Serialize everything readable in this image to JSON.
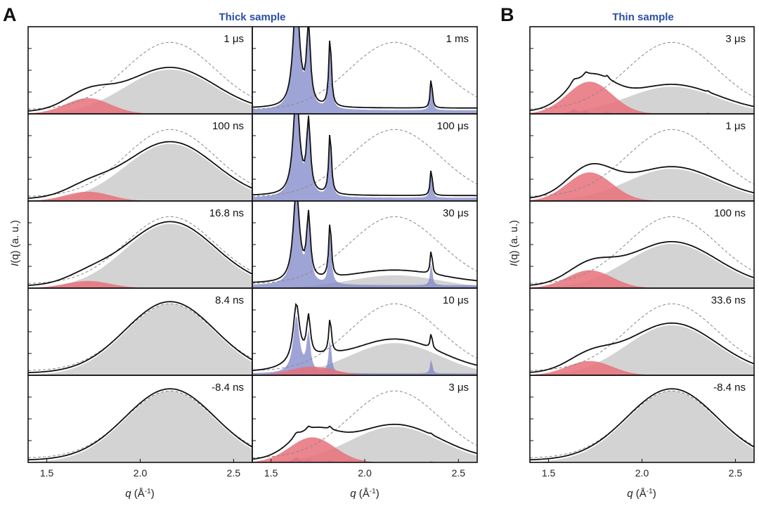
{
  "figure": {
    "panel_a_label": "A",
    "panel_b_label": "B",
    "thick_title": "Thick sample",
    "thin_title": "Thin sample",
    "ylabel_q": "I",
    "ylabel_paren": "(q)",
    "ylabel_units": " (a. u.)",
    "xlabel_q": "q",
    "xlabel_units": " (Å",
    "xlabel_exp": "-1",
    "xlabel_close": ")"
  },
  "colors": {
    "liquid": "#d3d3d3",
    "hdl": "#e8707a",
    "crystal": "#7f86c8",
    "total": "#111111",
    "reference": "#888888",
    "title_blue": "#2b4fa6"
  },
  "chart_data": [
    {
      "type": "line",
      "id": "A-left",
      "sample": "Thick sample",
      "xlabel": "q (Å-1)",
      "ylabel": "I(q) (a. u.)",
      "xlim": [
        1.4,
        2.6
      ],
      "xticks": [
        1.5,
        2.0,
        2.5
      ],
      "tick_labels": [
        "1.5",
        "2.0",
        "2.5"
      ],
      "rows": [
        {
          "time": "1 μs",
          "liquid_frac": 0.62,
          "hdl_frac": 0.22,
          "crystal_frac": 0.0
        },
        {
          "time": "100 ns",
          "liquid_frac": 0.8,
          "hdl_frac": 0.13,
          "crystal_frac": 0.0
        },
        {
          "time": "16.8 ns",
          "liquid_frac": 0.9,
          "hdl_frac": 0.1,
          "crystal_frac": 0.0
        },
        {
          "time": "8.4 ns",
          "liquid_frac": 1.0,
          "hdl_frac": 0.0,
          "crystal_frac": 0.0
        },
        {
          "time": "-8.4 ns",
          "liquid_frac": 1.0,
          "hdl_frac": 0.0,
          "crystal_frac": 0.0
        }
      ]
    },
    {
      "type": "line",
      "id": "A-right",
      "sample": "Thick sample",
      "xlabel": "q (Å-1)",
      "ylabel": "",
      "xlim": [
        1.4,
        2.6
      ],
      "xticks": [
        1.5,
        2.0,
        2.5
      ],
      "tick_labels": [
        "1.5",
        "2.0",
        "2.5"
      ],
      "rows": [
        {
          "time": "1 ms",
          "liquid_frac": 0.0,
          "hdl_frac": 0.0,
          "crystal_frac": 1.0
        },
        {
          "time": "100 μs",
          "liquid_frac": 0.0,
          "hdl_frac": 0.0,
          "crystal_frac": 0.9
        },
        {
          "time": "30 μs",
          "liquid_frac": 0.18,
          "hdl_frac": 0.0,
          "crystal_frac": 0.8
        },
        {
          "time": "10 μs",
          "liquid_frac": 0.45,
          "hdl_frac": 0.12,
          "crystal_frac": 0.5
        },
        {
          "time": "3 μs",
          "liquid_frac": 0.5,
          "hdl_frac": 0.35,
          "crystal_frac": 0.04
        }
      ]
    },
    {
      "type": "line",
      "id": "B",
      "sample": "Thin sample",
      "xlabel": "q (Å-1)",
      "ylabel": "I(q) (a. u.)",
      "xlim": [
        1.4,
        2.6
      ],
      "xticks": [
        1.5,
        2.0,
        2.5
      ],
      "tick_labels": [
        "1.5",
        "2.0",
        "2.5"
      ],
      "rows": [
        {
          "time": "3 μs",
          "liquid_frac": 0.38,
          "hdl_frac": 0.45,
          "crystal_frac": 0.04
        },
        {
          "time": "1 μs",
          "liquid_frac": 0.45,
          "hdl_frac": 0.4,
          "crystal_frac": 0.0
        },
        {
          "time": "100 ns",
          "liquid_frac": 0.62,
          "hdl_frac": 0.25,
          "crystal_frac": 0.0
        },
        {
          "time": "33.6 ns",
          "liquid_frac": 0.7,
          "hdl_frac": 0.2,
          "crystal_frac": 0.0
        },
        {
          "time": "-8.4 ns",
          "liquid_frac": 1.0,
          "hdl_frac": 0.0,
          "crystal_frac": 0.0
        }
      ]
    }
  ]
}
